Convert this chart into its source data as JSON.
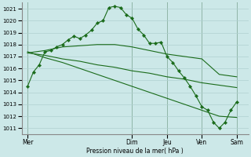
{
  "background_color": "#cce8e8",
  "grid_color": "#b0d0d0",
  "line_color": "#1a6b1a",
  "xlabel": "Pression niveau de la mer( hPa )",
  "ylim": [
    1010.5,
    1021.5
  ],
  "yticks": [
    1011,
    1012,
    1013,
    1014,
    1015,
    1016,
    1017,
    1018,
    1019,
    1020,
    1021
  ],
  "day_labels": [
    "Mer",
    "Dim",
    "Jeu",
    "Ven",
    "Sam"
  ],
  "day_positions": [
    0,
    18,
    24,
    30,
    36
  ],
  "xlim": [
    -1,
    38
  ],
  "series": [
    {
      "x": [
        0,
        1,
        2,
        3,
        4,
        5,
        6,
        7,
        8,
        9,
        10,
        11,
        12,
        13,
        14,
        15,
        16,
        17,
        18,
        19,
        20,
        21,
        22,
        23,
        24,
        25,
        26,
        27,
        28,
        29,
        30,
        31,
        32,
        33,
        34,
        35,
        36
      ],
      "y": [
        1014.5,
        1015.7,
        1016.3,
        1017.4,
        1017.5,
        1017.8,
        1018.0,
        1018.4,
        1018.7,
        1018.5,
        1018.8,
        1019.2,
        1019.8,
        1020.0,
        1021.1,
        1021.2,
        1021.1,
        1020.5,
        1020.2,
        1019.3,
        1018.8,
        1018.1,
        1018.1,
        1018.2,
        1017.0,
        1016.5,
        1015.8,
        1015.2,
        1014.5,
        1013.7,
        1012.8,
        1012.5,
        1011.5,
        1011.0,
        1011.5,
        1012.5,
        1013.2
      ],
      "marker": true
    },
    {
      "x": [
        0,
        3,
        6,
        9,
        12,
        15,
        18,
        21,
        24,
        27,
        30,
        33,
        36
      ],
      "y": [
        1017.3,
        1017.5,
        1017.8,
        1017.9,
        1018.0,
        1018.0,
        1017.8,
        1017.5,
        1017.2,
        1017.0,
        1016.8,
        1015.5,
        1015.3
      ],
      "marker": false
    },
    {
      "x": [
        0,
        3,
        6,
        9,
        12,
        15,
        18,
        21,
        24,
        27,
        30,
        33,
        36
      ],
      "y": [
        1017.3,
        1017.1,
        1016.8,
        1016.6,
        1016.3,
        1016.1,
        1015.8,
        1015.6,
        1015.3,
        1015.1,
        1014.8,
        1014.6,
        1014.4
      ],
      "marker": false
    },
    {
      "x": [
        0,
        3,
        6,
        9,
        12,
        15,
        18,
        21,
        24,
        27,
        30,
        33,
        36
      ],
      "y": [
        1017.4,
        1016.9,
        1016.5,
        1016.0,
        1015.5,
        1015.0,
        1014.5,
        1014.0,
        1013.5,
        1013.0,
        1012.5,
        1012.0,
        1011.9
      ],
      "marker": false
    }
  ]
}
